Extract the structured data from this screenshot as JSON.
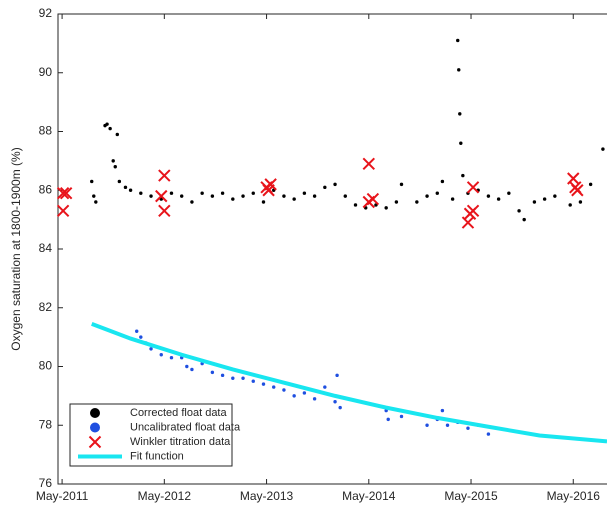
{
  "chart_data": {
    "type": "scatter",
    "y_label": "Oxygen saturation at 1800-1900m (%)",
    "xlim": [
      2011.29,
      2016.66
    ],
    "ylim": [
      76,
      92
    ],
    "yticks": [
      76,
      78,
      80,
      82,
      84,
      86,
      88,
      90,
      92
    ],
    "xticks": [
      {
        "value": 2011.33,
        "label": "May-2011"
      },
      {
        "value": 2012.33,
        "label": "May-2012"
      },
      {
        "value": 2013.33,
        "label": "May-2013"
      },
      {
        "value": 2014.33,
        "label": "May-2014"
      },
      {
        "value": 2015.33,
        "label": "May-2015"
      },
      {
        "value": 2016.33,
        "label": "May-2016"
      }
    ],
    "legend": "lower left",
    "series": [
      {
        "name": "Corrected float data",
        "type": "scatter",
        "marker": "dot",
        "color": "#000000",
        "x": [
          2011.62,
          2011.64,
          2011.66,
          2011.75,
          2011.77,
          2011.8,
          2011.83,
          2011.85,
          2011.87,
          2011.89,
          2011.95,
          2012.0,
          2012.1,
          2012.2,
          2012.3,
          2012.4,
          2012.5,
          2012.6,
          2012.7,
          2012.8,
          2012.9,
          2013.0,
          2013.1,
          2013.2,
          2013.3,
          2013.4,
          2013.5,
          2013.6,
          2013.7,
          2013.8,
          2013.9,
          2014.0,
          2014.1,
          2014.2,
          2014.3,
          2014.4,
          2014.5,
          2014.6,
          2014.65,
          2014.8,
          2014.9,
          2015.0,
          2015.05,
          2015.15,
          2015.2,
          2015.21,
          2015.22,
          2015.23,
          2015.25,
          2015.3,
          2015.4,
          2015.5,
          2015.6,
          2015.7,
          2015.8,
          2015.85,
          2015.95,
          2016.05,
          2016.15,
          2016.3,
          2016.4,
          2016.5,
          2016.62
        ],
        "values": [
          86.3,
          85.8,
          85.6,
          88.2,
          88.25,
          88.1,
          87.0,
          86.8,
          87.9,
          86.3,
          86.1,
          86.0,
          85.9,
          85.8,
          85.7,
          85.9,
          85.8,
          85.6,
          85.9,
          85.8,
          85.9,
          85.7,
          85.8,
          85.9,
          85.6,
          86.0,
          85.8,
          85.7,
          85.9,
          85.8,
          86.1,
          86.2,
          85.8,
          85.5,
          85.4,
          85.5,
          85.4,
          85.6,
          86.2,
          85.6,
          85.8,
          85.9,
          86.3,
          85.7,
          91.1,
          90.1,
          88.6,
          87.6,
          86.5,
          85.9,
          86.0,
          85.8,
          85.7,
          85.9,
          85.3,
          85.0,
          85.6,
          85.7,
          85.8,
          85.5,
          85.6,
          86.2,
          87.4
        ]
      },
      {
        "name": "Uncalibrated float data",
        "type": "scatter",
        "marker": "dot",
        "color": "#1f4fe0",
        "x": [
          2012.06,
          2012.1,
          2012.15,
          2012.2,
          2012.3,
          2012.4,
          2012.5,
          2012.55,
          2012.6,
          2012.7,
          2012.8,
          2012.9,
          2013.0,
          2013.1,
          2013.2,
          2013.3,
          2013.4,
          2013.5,
          2013.6,
          2013.7,
          2013.8,
          2013.9,
          2014.0,
          2014.02,
          2014.05,
          2014.5,
          2014.52,
          2014.65,
          2014.9,
          2015.0,
          2015.05,
          2015.1,
          2015.2,
          2015.3,
          2015.4,
          2015.5
        ],
        "values": [
          81.2,
          81.0,
          80.8,
          80.6,
          80.4,
          80.3,
          80.3,
          80.0,
          79.9,
          80.1,
          79.8,
          79.7,
          79.6,
          79.6,
          79.5,
          79.4,
          79.3,
          79.2,
          79.0,
          79.1,
          78.9,
          79.3,
          78.8,
          79.7,
          78.6,
          78.5,
          78.2,
          78.3,
          78.0,
          78.2,
          78.5,
          78.0,
          78.1,
          77.9,
          78.0,
          77.7
        ]
      },
      {
        "name": "Winkler titration data",
        "type": "scatter",
        "marker": "x",
        "color": "#e8141b",
        "x": [
          2011.34,
          2011.34,
          2011.37,
          2012.33,
          2012.33,
          2012.3,
          2013.33,
          2013.35,
          2013.37,
          2014.33,
          2014.33,
          2014.37,
          2015.3,
          2015.32,
          2015.35,
          2015.35,
          2016.33,
          2016.35,
          2016.37
        ],
        "values": [
          85.9,
          85.3,
          85.9,
          86.5,
          85.3,
          85.8,
          86.1,
          86.0,
          86.2,
          86.9,
          85.6,
          85.7,
          84.9,
          85.2,
          85.3,
          86.1,
          86.4,
          86.1,
          86.0
        ]
      },
      {
        "name": "Fit function",
        "type": "line",
        "marker": "line",
        "color": "#19e6f0",
        "x": [
          2011.62,
          2012.0,
          2012.5,
          2013.0,
          2013.5,
          2014.0,
          2014.5,
          2015.0,
          2015.5,
          2016.0,
          2016.66
        ],
        "values": [
          81.45,
          80.95,
          80.4,
          79.9,
          79.45,
          79.0,
          78.6,
          78.25,
          77.95,
          77.65,
          77.45
        ]
      }
    ]
  }
}
